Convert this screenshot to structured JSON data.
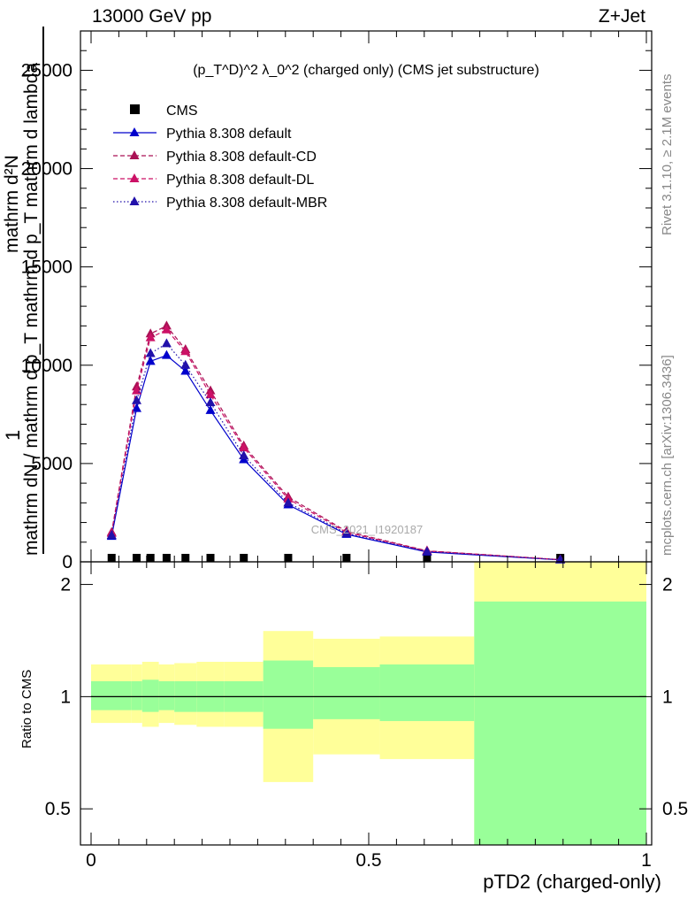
{
  "header": {
    "left": "13000 GeV pp",
    "right": "Z+Jet"
  },
  "plot_title": "(p_T^D)^2 λ_0^2 (charged only) (CMS jet substructure)",
  "side_labels": {
    "rivet": "Rivet 3.1.10, ≥ 2.1M events",
    "mcplots": "mcplots.cern.ch [arXiv:1306.3436]"
  },
  "watermark": "CMS_2021_I1920187",
  "ylabel_main": {
    "line1": "1",
    "line2": "mathrm d²N",
    "line3": "mathrm dN / mathrm d p_T mathrm d p_T mathrm d lambda"
  },
  "ylabel_ratio": "Ratio to CMS",
  "xlabel": "pTD2 (charged-only)",
  "colors": {
    "cms": "#000000",
    "default": "#0000cc",
    "default_cd": "#aa1155",
    "default_dl": "#cc1166",
    "default_mbr": "#2211aa",
    "band_inner": "#99ff99",
    "band_outer": "#ffff99"
  },
  "chart_data": {
    "type": "line",
    "main": {
      "xlim": [
        0,
        1
      ],
      "ylim": [
        0,
        27000
      ],
      "y_ticks": [
        0,
        5000,
        10000,
        15000,
        20000,
        25000
      ],
      "y_tick_labels": [
        "0",
        "5000",
        "10000",
        "15000",
        "20000",
        "25000"
      ],
      "x": [
        0.037,
        0.082,
        0.107,
        0.136,
        0.17,
        0.215,
        0.275,
        0.355,
        0.46,
        0.605,
        0.845
      ],
      "series": [
        {
          "name": "CMS",
          "key": "cms",
          "marker": "square",
          "line": "none",
          "values": [
            0,
            0,
            0,
            0,
            0,
            0,
            0,
            0,
            0,
            0,
            0
          ]
        },
        {
          "name": "Pythia 8.308 default",
          "key": "default",
          "marker": "triangle",
          "line": "solid",
          "values": [
            1300,
            7800,
            10200,
            10500,
            9700,
            7700,
            5200,
            2900,
            1400,
            500,
            100
          ]
        },
        {
          "name": "Pythia 8.308 default-CD",
          "key": "default_cd",
          "marker": "triangle",
          "line": "dashed",
          "values": [
            1500,
            8900,
            11600,
            12000,
            10800,
            8700,
            5900,
            3300,
            1550,
            560,
            110
          ]
        },
        {
          "name": "Pythia 8.308 default-DL",
          "key": "default_dl",
          "marker": "triangle",
          "line": "dashed",
          "values": [
            1450,
            8700,
            11400,
            11800,
            10700,
            8500,
            5800,
            3200,
            1500,
            550,
            110
          ]
        },
        {
          "name": "Pythia 8.308 default-MBR",
          "key": "default_mbr",
          "marker": "triangle",
          "line": "dotted",
          "values": [
            1350,
            8200,
            10600,
            11100,
            10000,
            8100,
            5400,
            3000,
            1450,
            520,
            105
          ]
        }
      ]
    },
    "ratio": {
      "xlim": [
        0,
        1
      ],
      "ylim": [
        0.4,
        2.3
      ],
      "log_y": true,
      "y_ticks": [
        0.5,
        1,
        2
      ],
      "y_tick_labels": [
        "0.5",
        "1",
        "2"
      ],
      "x_ticks": [
        0,
        0.5,
        1
      ],
      "x_tick_labels": [
        "0",
        "0.5",
        "1"
      ],
      "bin_edges": [
        0,
        0.072,
        0.092,
        0.122,
        0.15,
        0.19,
        0.24,
        0.31,
        0.4,
        0.52,
        0.69,
        1.0
      ],
      "inner_low": [
        0.92,
        0.92,
        0.91,
        0.92,
        0.91,
        0.91,
        0.91,
        0.82,
        0.87,
        0.86,
        0.3
      ],
      "inner_high": [
        1.1,
        1.1,
        1.11,
        1.1,
        1.1,
        1.1,
        1.1,
        1.25,
        1.2,
        1.22,
        1.8
      ],
      "outer_low": [
        0.85,
        0.85,
        0.83,
        0.85,
        0.84,
        0.83,
        0.83,
        0.59,
        0.7,
        0.68,
        0.3
      ],
      "outer_high": [
        1.22,
        1.22,
        1.24,
        1.22,
        1.23,
        1.24,
        1.24,
        1.5,
        1.43,
        1.45,
        2.5
      ],
      "reference": 1
    }
  }
}
